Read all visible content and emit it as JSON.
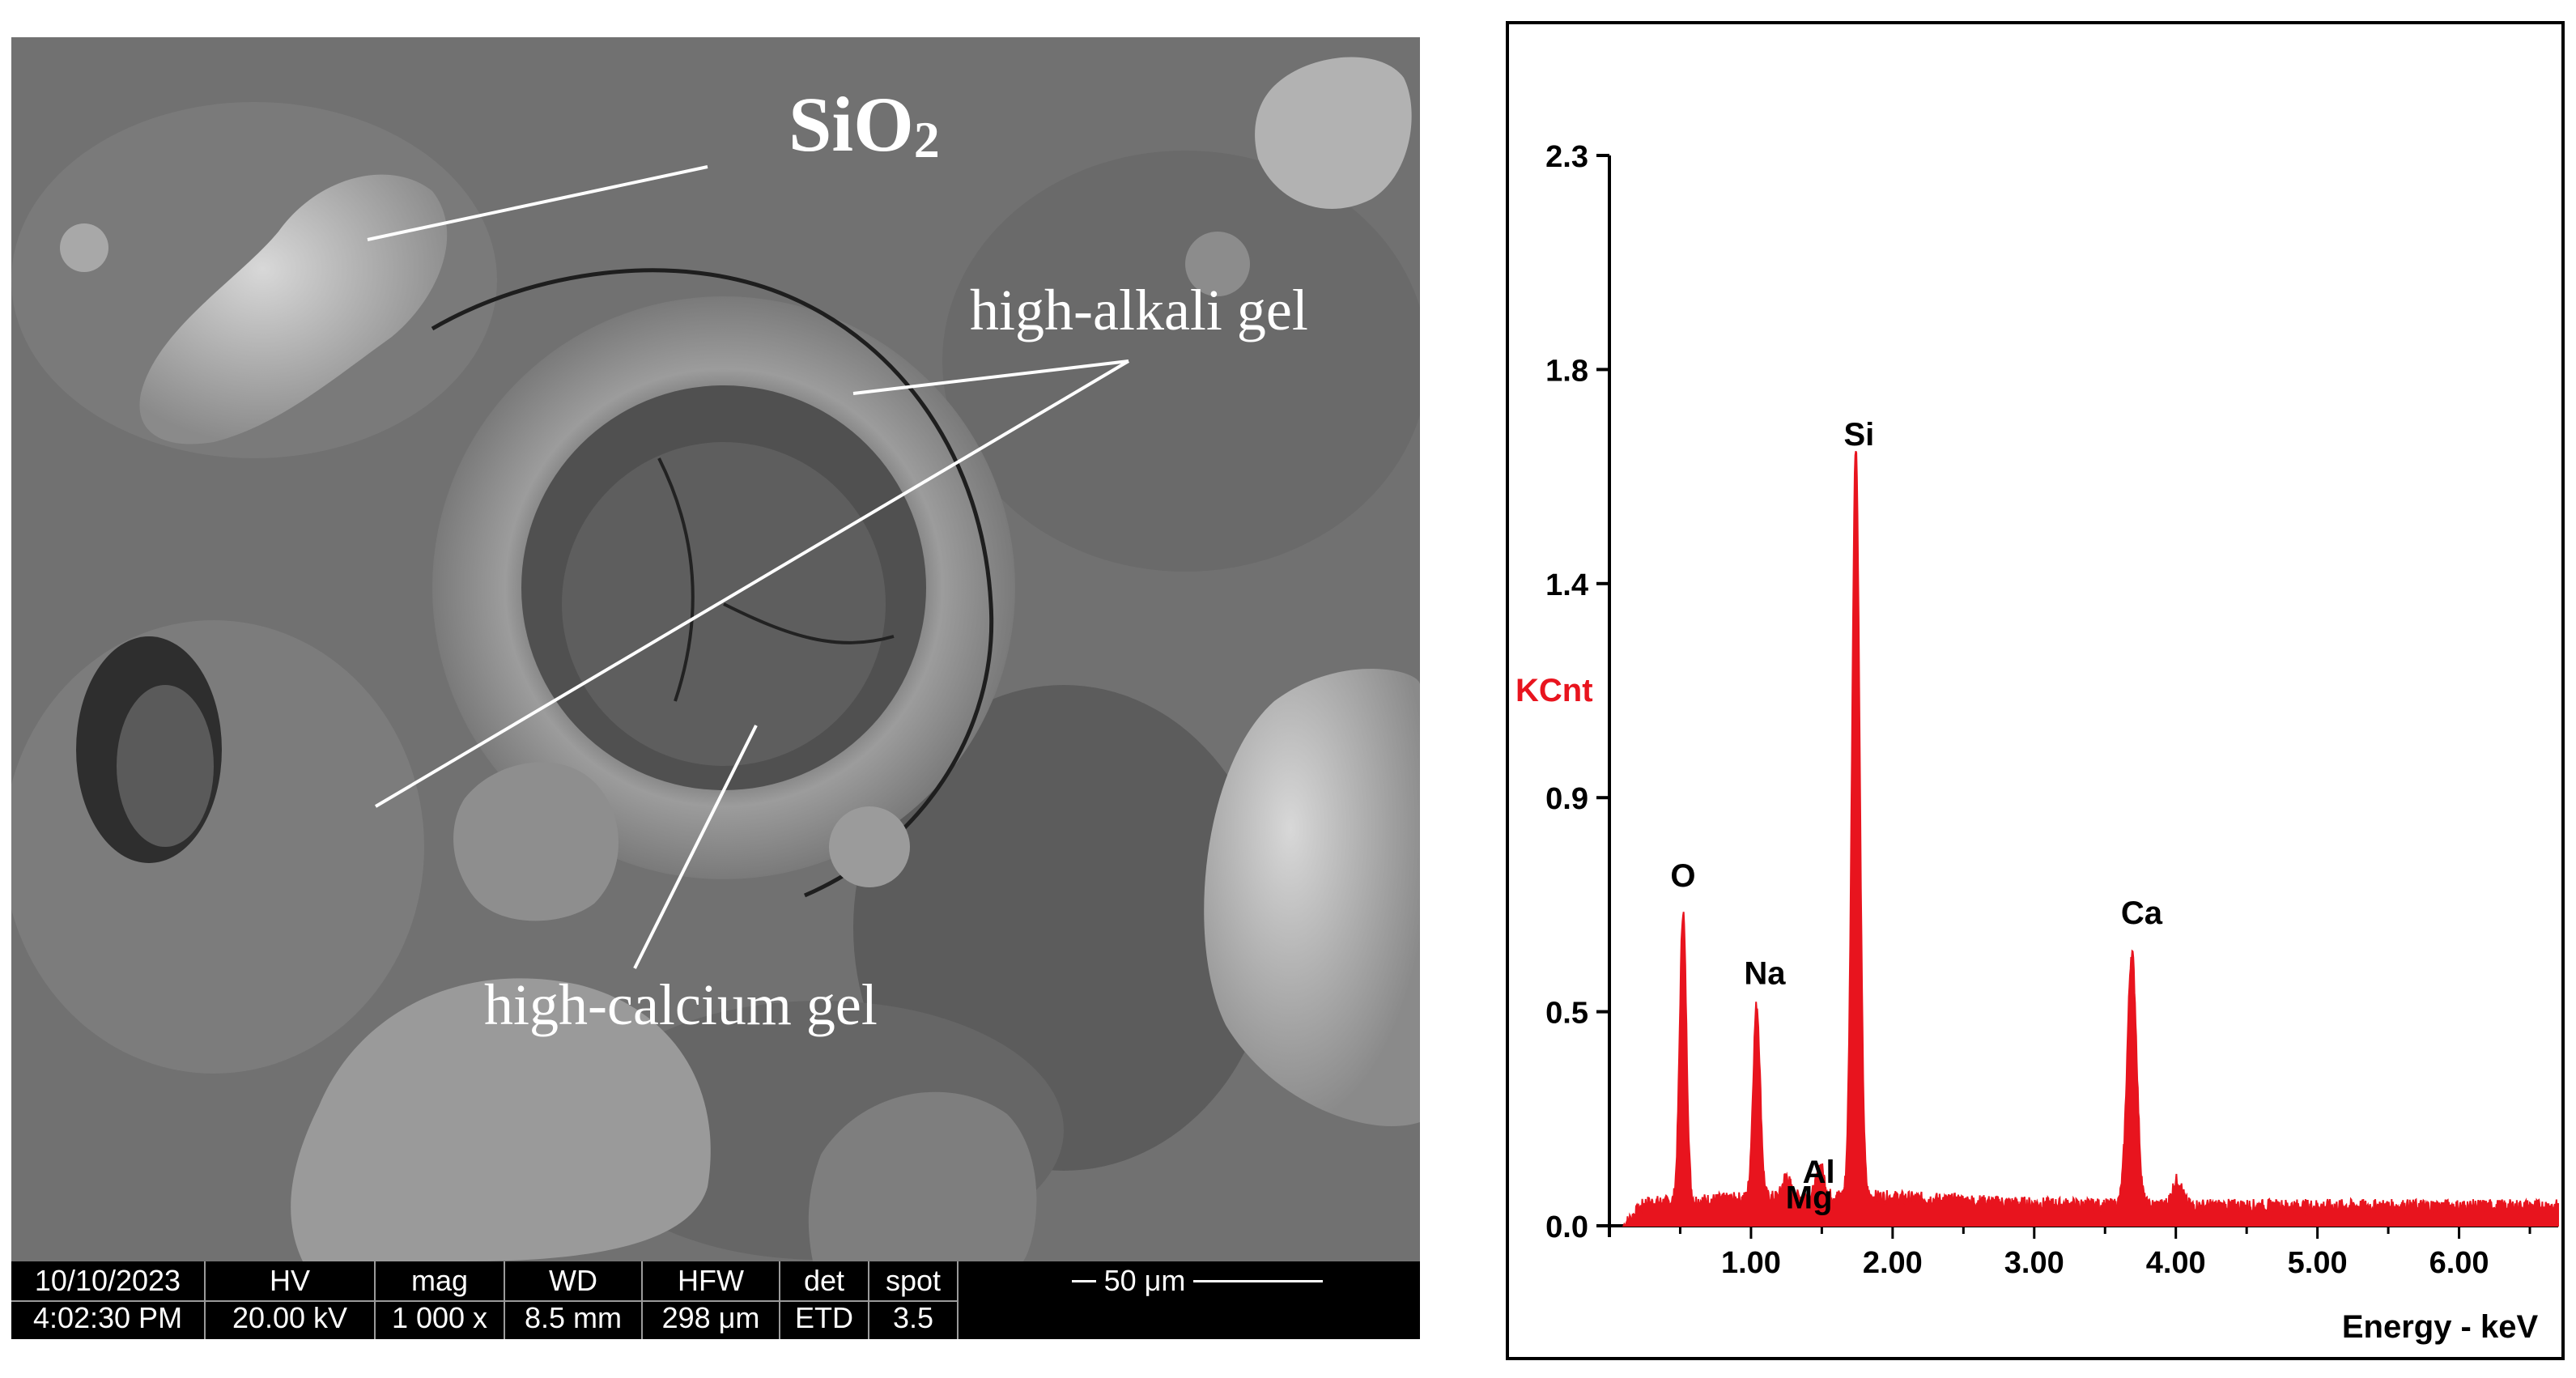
{
  "micrograph": {
    "labels": {
      "sio2_main": "SiO",
      "sio2_sub": "2",
      "high_alkali": "high-alkali gel",
      "high_calcium": "high-calcium gel"
    },
    "databar": {
      "date": "10/10/2023",
      "time": "4:02:30 PM",
      "hv_label": "HV",
      "hv": "20.00 kV",
      "mag_label": "mag",
      "mag": "1 000 x",
      "wd_label": "WD",
      "wd": "8.5 mm",
      "hfw_label": "HFW",
      "hfw": "298 μm",
      "det_label": "det",
      "det": "ETD",
      "spot_label": "spot",
      "spot": "3.5",
      "scale_bar": "50 μm"
    }
  },
  "chart_data": {
    "type": "line",
    "ylabel": "KCnt",
    "xlabel": "Energy - keV",
    "xlim": [
      0,
      6.7
    ],
    "ylim": [
      0,
      2.3
    ],
    "y_ticks": [
      "0.0",
      "0.5",
      "0.9",
      "1.4",
      "1.8",
      "2.3"
    ],
    "x_ticks": [
      "1.00",
      "2.00",
      "3.00",
      "4.00",
      "5.00",
      "6.00"
    ],
    "line_color": "#e8141e",
    "ylabel_color": "#e8141e",
    "peaks": [
      {
        "element": "O",
        "energy": 0.52,
        "kcnt": 0.67
      },
      {
        "element": "Na",
        "energy": 1.04,
        "kcnt": 0.46
      },
      {
        "element": "Mg",
        "energy": 1.25,
        "kcnt": 0.09
      },
      {
        "element": "Al",
        "energy": 1.49,
        "kcnt": 0.11
      },
      {
        "element": "Si",
        "energy": 1.74,
        "kcnt": 1.66
      },
      {
        "element": "Ca",
        "energy": 3.69,
        "kcnt": 0.59
      },
      {
        "element": "",
        "energy": 4.01,
        "kcnt": 0.1
      }
    ]
  }
}
